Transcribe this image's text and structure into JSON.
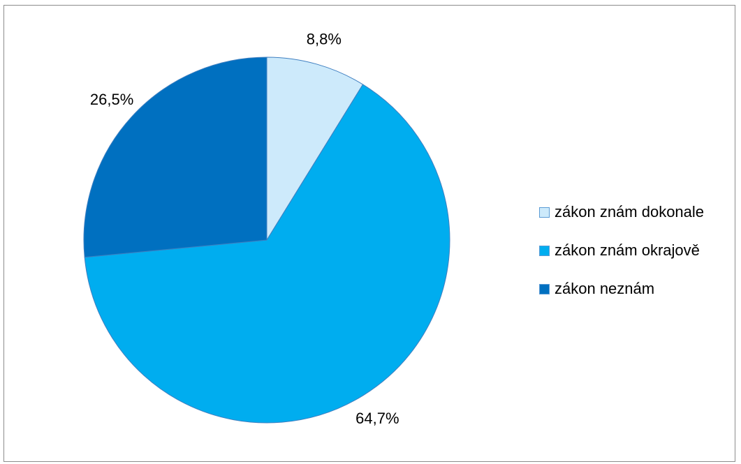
{
  "chart_data": {
    "type": "pie",
    "start_angle_deg": 0,
    "direction": "clockwise",
    "slices": [
      {
        "name": "zákon znám dokonale",
        "value": 8.8,
        "label": "8,8%",
        "color": "#cdeafb"
      },
      {
        "name": "zákon znám okrajově",
        "value": 64.7,
        "label": "64,7%",
        "color": "#00adef"
      },
      {
        "name": "zákon neznám",
        "value": 26.5,
        "label": "26,5%",
        "color": "#0070c0"
      }
    ],
    "legend_position": "right",
    "slice_border_color": "#3f7fc0"
  }
}
